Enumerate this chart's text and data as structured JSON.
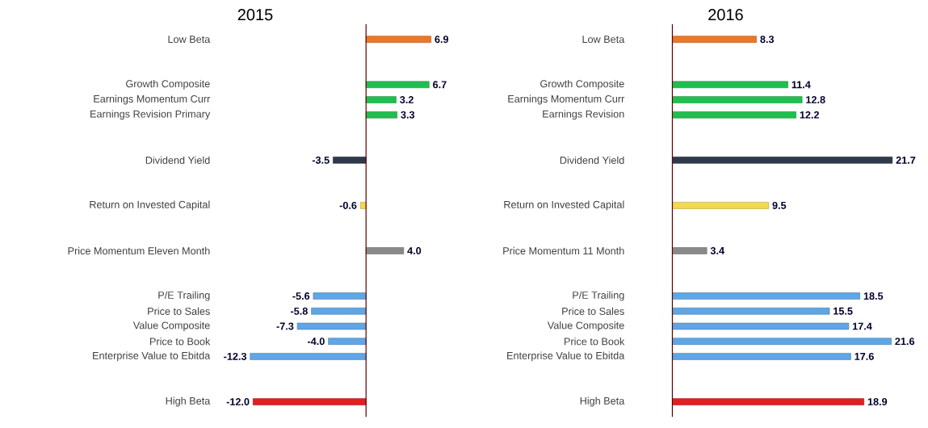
{
  "chart_data": [
    {
      "type": "bar",
      "orientation": "horizontal",
      "title": "2015",
      "categories": [
        "Low Beta",
        null,
        null,
        "Growth Composite",
        "Earnings Momentum Curr",
        "Earnings Revision Primary",
        null,
        null,
        "Dividend Yield",
        null,
        null,
        "Return on Invested Capital",
        null,
        null,
        "Price Momentum Eleven Month",
        null,
        null,
        "P/E Trailing",
        "Price to Sales",
        "Value Composite",
        "Price to Book",
        "Enterprise Value to Ebitda",
        null,
        null,
        "High Beta"
      ],
      "values": [
        6.9,
        null,
        null,
        6.7,
        3.2,
        3.3,
        null,
        null,
        -3.5,
        null,
        null,
        -0.6,
        null,
        null,
        4.0,
        null,
        null,
        -5.6,
        -5.8,
        -7.3,
        -4.0,
        -12.3,
        null,
        null,
        -12.0
      ],
      "value_labels": [
        "6.9",
        null,
        null,
        "6.7",
        "3.2",
        "3.3",
        null,
        null,
        "-3.5",
        null,
        null,
        "-0.6",
        null,
        null,
        "4.0",
        null,
        null,
        "-5.6",
        "-5.8",
        "-7.3",
        "-4.0",
        "-12.3",
        null,
        null,
        "-12.0"
      ],
      "colors": [
        "#e8782a",
        null,
        null,
        "#1fbf4f",
        "#1fbf4f",
        "#1fbf4f",
        null,
        null,
        "#2e3a4c",
        null,
        null,
        "#f2d94e",
        null,
        null,
        "#8a8a8a",
        null,
        null,
        "#5ea6e6",
        "#5ea6e6",
        "#5ea6e6",
        "#5ea6e6",
        "#5ea6e6",
        null,
        null,
        "#e02020"
      ]
    },
    {
      "type": "bar",
      "orientation": "horizontal",
      "title": "2016",
      "categories": [
        "Low Beta",
        null,
        null,
        "Growth Composite",
        "Earnings Momentum Curr",
        "Earnings Revision",
        null,
        null,
        "Dividend Yield",
        null,
        null,
        "Return on Invested Capital",
        null,
        null,
        "Price Momentum 11 Month",
        null,
        null,
        "P/E Trailing",
        "Price to Sales",
        "Value Composite",
        "Price to Book",
        "Enterprise Value to Ebitda",
        null,
        null,
        "High Beta"
      ],
      "values": [
        8.3,
        null,
        null,
        11.4,
        12.8,
        12.2,
        null,
        null,
        21.7,
        null,
        null,
        9.5,
        null,
        null,
        3.4,
        null,
        null,
        18.5,
        15.5,
        17.4,
        21.6,
        17.6,
        null,
        null,
        18.9
      ],
      "value_labels": [
        "8.3",
        null,
        null,
        "11.4",
        "12.8",
        "12.2",
        null,
        null,
        "21.7",
        null,
        null,
        "9.5",
        null,
        null,
        "3.4",
        null,
        null,
        "18.5",
        "15.5",
        "17.4",
        "21.6",
        "17.6",
        null,
        null,
        "18.9"
      ],
      "colors": [
        "#e8782a",
        null,
        null,
        "#1fbf4f",
        "#1fbf4f",
        "#1fbf4f",
        null,
        null,
        "#2e3a4c",
        null,
        null,
        "#f2d94e",
        null,
        null,
        "#8a8a8a",
        null,
        null,
        "#5ea6e6",
        "#5ea6e6",
        "#5ea6e6",
        "#5ea6e6",
        "#5ea6e6",
        null,
        null,
        "#e02020"
      ]
    }
  ]
}
